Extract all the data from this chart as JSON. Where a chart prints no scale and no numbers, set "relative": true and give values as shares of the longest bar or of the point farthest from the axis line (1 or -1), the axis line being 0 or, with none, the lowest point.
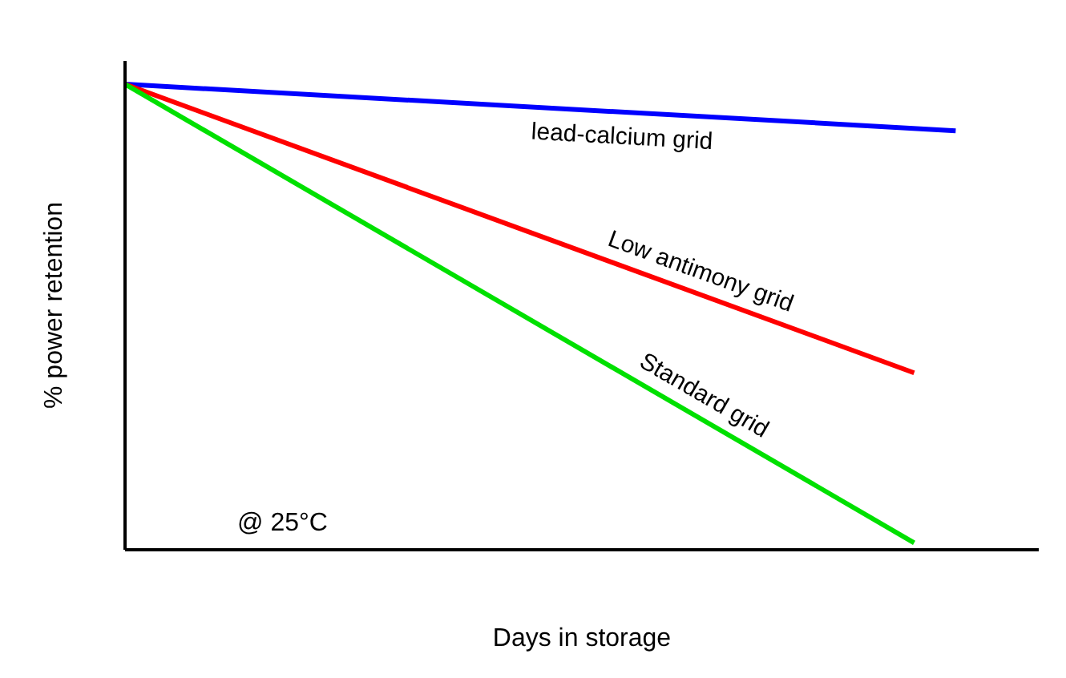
{
  "chart_data": {
    "type": "line",
    "relative": true,
    "xlabel": "Days in storage",
    "ylabel": "% power retention",
    "annotations": [
      "@ 25°C"
    ],
    "marker": "none",
    "line_style": "solid",
    "categories": [
      null,
      null,
      null,
      null,
      null,
      null,
      null,
      null,
      null,
      null,
      null,
      null,
      null,
      null,
      null,
      null,
      null,
      null,
      null,
      null,
      null,
      null,
      null
    ],
    "series": [
      {
        "name": "lead-calcium grid",
        "color": "#0000ff",
        "values": [
          1,
          null,
          null,
          null,
          null,
          null,
          null,
          null,
          null,
          null,
          null,
          null,
          null,
          null,
          null,
          null,
          null,
          null,
          null,
          null,
          0.9,
          null,
          null
        ]
      },
      {
        "name": "Low antimony grid",
        "color": "#ff0000",
        "values": [
          1,
          null,
          null,
          null,
          null,
          null,
          null,
          null,
          null,
          null,
          null,
          null,
          null,
          null,
          null,
          null,
          null,
          null,
          null,
          0.38,
          null,
          null,
          null
        ]
      },
      {
        "name": "Standard grid",
        "color": "#00e000",
        "values": [
          1,
          null,
          null,
          null,
          null,
          null,
          null,
          null,
          null,
          null,
          null,
          null,
          null,
          null,
          null,
          null,
          null,
          null,
          null,
          0.015,
          null,
          null,
          null
        ]
      }
    ]
  }
}
